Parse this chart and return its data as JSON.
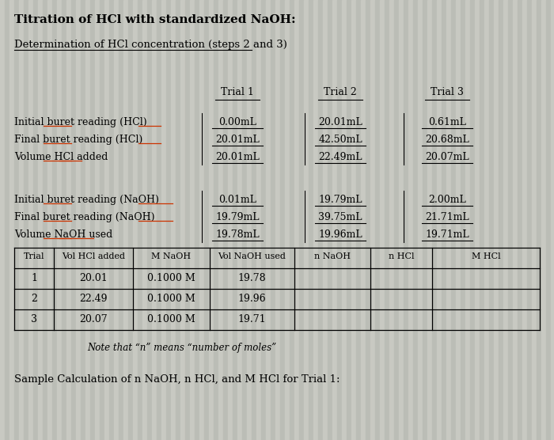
{
  "title": "Titration of HCl with standardized NaOH:",
  "subtitle": "Determination of HCl concentration (steps 2 and 3)",
  "bg_color": "#c8c9c2",
  "trial_headers": [
    "Trial 1",
    "Trial 2",
    "Trial 3"
  ],
  "hcl_labels": [
    "Initial buret reading (HCl)",
    "Final buret reading (HCl)",
    "Volume HCl added"
  ],
  "hcl_data": [
    [
      "0.00mL",
      "20.01mL",
      "0.61mL"
    ],
    [
      "20.01mL",
      "42.50mL",
      "20.68mL"
    ],
    [
      "20.01mL",
      "22.49mL",
      "20.07mL"
    ]
  ],
  "naoh_labels": [
    "Initial buret reading (NaOH)",
    "Final buret reading (NaOH)",
    "Volume NaOH used"
  ],
  "naoh_data": [
    [
      "0.01mL",
      "19.79mL",
      "2.00mL"
    ],
    [
      "19.79mL",
      "39.75mL",
      "21.71mL"
    ],
    [
      "19.78mL",
      "19.96mL",
      "19.71mL"
    ]
  ],
  "table_headers": [
    "Trial",
    "Vol HCl added",
    "M NaOH",
    "Vol NaOH used",
    "n NaOH",
    "n HCl",
    "M HCl"
  ],
  "table_data": [
    [
      "1",
      "20.01",
      "0.1000 M",
      "19.78",
      "",
      "",
      ""
    ],
    [
      "2",
      "22.49",
      "0.1000 M",
      "19.96",
      "",
      "",
      ""
    ],
    [
      "3",
      "20.07",
      "0.1000 M",
      "19.71",
      "",
      "",
      ""
    ]
  ],
  "note": "Note that “n” means “number of moles”",
  "sample_calc": "Sample Calculation of n NaOH, n HCl, and M HCl for Trial 1:",
  "stripe_color1": "#c8c9c2",
  "stripe_color2": "#bbbdb6"
}
